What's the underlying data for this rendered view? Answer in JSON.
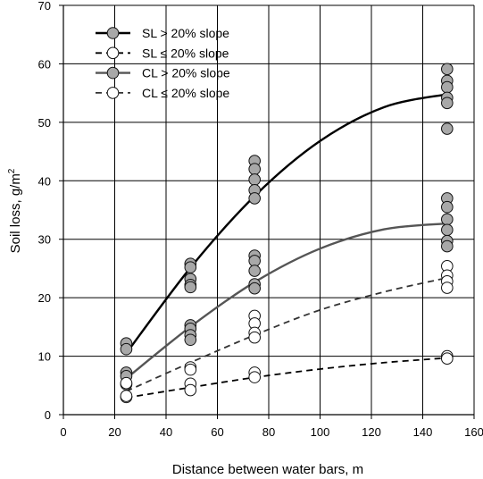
{
  "chart_data": {
    "type": "scatter",
    "title": "",
    "xlabel": "Distance between water bars, m",
    "ylabel": "Soil loss, g/m",
    "ylabel_sup": "2",
    "xlim": [
      0,
      160
    ],
    "ylim": [
      0,
      70
    ],
    "xticks": [
      "0",
      "20",
      "40",
      "60",
      "80",
      "100",
      "120",
      "140",
      "160"
    ],
    "yticks": [
      "0",
      "10",
      "20",
      "30",
      "40",
      "50",
      "60",
      "70"
    ],
    "grid": true,
    "legend_position": "top-left",
    "series": [
      {
        "name": "SL > 20% slope",
        "marker_fill": "#a8a8a8",
        "line_color": "#000000",
        "line_style": "solid",
        "points": [
          {
            "x": 24.5,
            "y": 12.2
          },
          {
            "x": 24.5,
            "y": 11.2
          },
          {
            "x": 49.5,
            "y": 25.8
          },
          {
            "x": 49.5,
            "y": 25.2
          },
          {
            "x": 49.5,
            "y": 23.2
          },
          {
            "x": 49.5,
            "y": 22.2
          },
          {
            "x": 49.5,
            "y": 21.8
          },
          {
            "x": 74.5,
            "y": 43.4
          },
          {
            "x": 74.5,
            "y": 42.0
          },
          {
            "x": 74.5,
            "y": 40.2
          },
          {
            "x": 74.5,
            "y": 38.4
          },
          {
            "x": 74.5,
            "y": 37.0
          },
          {
            "x": 149.5,
            "y": 59.1
          },
          {
            "x": 149.5,
            "y": 57.1
          },
          {
            "x": 149.5,
            "y": 56.0
          },
          {
            "x": 149.5,
            "y": 54.2
          },
          {
            "x": 149.5,
            "y": 53.3
          },
          {
            "x": 149.5,
            "y": 48.9
          }
        ],
        "curve": [
          {
            "x": 24.5,
            "y": 10.5
          },
          {
            "x": 50,
            "y": 25.4
          },
          {
            "x": 75,
            "y": 37.6
          },
          {
            "x": 100,
            "y": 46.8
          },
          {
            "x": 125,
            "y": 52.6
          },
          {
            "x": 149.5,
            "y": 54.8
          }
        ]
      },
      {
        "name": "SL ≤ 20% slope",
        "marker_fill": "#ffffff",
        "line_color": "#000000",
        "line_style": "dashed",
        "points": [
          {
            "x": 24.5,
            "y": 5.2
          },
          {
            "x": 24.5,
            "y": 3.0
          },
          {
            "x": 49.5,
            "y": 5.3
          },
          {
            "x": 49.5,
            "y": 4.2
          },
          {
            "x": 74.5,
            "y": 7.2
          },
          {
            "x": 74.5,
            "y": 6.4
          },
          {
            "x": 149.5,
            "y": 10.0
          },
          {
            "x": 149.5,
            "y": 9.6
          }
        ],
        "curve": [
          {
            "x": 24.5,
            "y": 2.9
          },
          {
            "x": 50,
            "y": 4.7
          },
          {
            "x": 75,
            "y": 6.4
          },
          {
            "x": 100,
            "y": 7.8
          },
          {
            "x": 125,
            "y": 8.9
          },
          {
            "x": 149.5,
            "y": 9.7
          }
        ]
      },
      {
        "name": "CL > 20% slope",
        "marker_fill": "#a8a8a8",
        "line_color": "#555555",
        "line_style": "solid",
        "points": [
          {
            "x": 24.5,
            "y": 7.2
          },
          {
            "x": 24.5,
            "y": 6.6
          },
          {
            "x": 49.5,
            "y": 15.3
          },
          {
            "x": 49.5,
            "y": 14.7
          },
          {
            "x": 49.5,
            "y": 13.6
          },
          {
            "x": 49.5,
            "y": 12.8
          },
          {
            "x": 74.5,
            "y": 27.2
          },
          {
            "x": 74.5,
            "y": 26.3
          },
          {
            "x": 74.5,
            "y": 24.6
          },
          {
            "x": 74.5,
            "y": 22.3
          },
          {
            "x": 74.5,
            "y": 21.6
          },
          {
            "x": 149.5,
            "y": 37.0
          },
          {
            "x": 149.5,
            "y": 35.5
          },
          {
            "x": 149.5,
            "y": 33.4
          },
          {
            "x": 149.5,
            "y": 31.6
          },
          {
            "x": 149.5,
            "y": 29.7
          },
          {
            "x": 149.5,
            "y": 28.8
          }
        ],
        "curve": [
          {
            "x": 24.5,
            "y": 6.2
          },
          {
            "x": 50,
            "y": 15.2
          },
          {
            "x": 75,
            "y": 22.8
          },
          {
            "x": 100,
            "y": 28.4
          },
          {
            "x": 125,
            "y": 31.7
          },
          {
            "x": 149.5,
            "y": 32.7
          }
        ]
      },
      {
        "name": "CL ≤ 20% slope",
        "marker_fill": "#ffffff",
        "line_color": "#333333",
        "line_style": "dashed",
        "points": [
          {
            "x": 24.5,
            "y": 5.4
          },
          {
            "x": 24.5,
            "y": 3.2
          },
          {
            "x": 49.5,
            "y": 8.1
          },
          {
            "x": 49.5,
            "y": 7.7
          },
          {
            "x": 74.5,
            "y": 16.9
          },
          {
            "x": 74.5,
            "y": 15.6
          },
          {
            "x": 74.5,
            "y": 14.0
          },
          {
            "x": 74.5,
            "y": 13.2
          },
          {
            "x": 149.5,
            "y": 25.4
          },
          {
            "x": 149.5,
            "y": 23.8
          },
          {
            "x": 149.5,
            "y": 22.8
          },
          {
            "x": 149.5,
            "y": 21.7
          }
        ],
        "curve": [
          {
            "x": 24.5,
            "y": 4.0
          },
          {
            "x": 50,
            "y": 9.0
          },
          {
            "x": 75,
            "y": 13.7
          },
          {
            "x": 100,
            "y": 17.9
          },
          {
            "x": 125,
            "y": 21.0
          },
          {
            "x": 149.5,
            "y": 23.4
          }
        ]
      }
    ]
  }
}
